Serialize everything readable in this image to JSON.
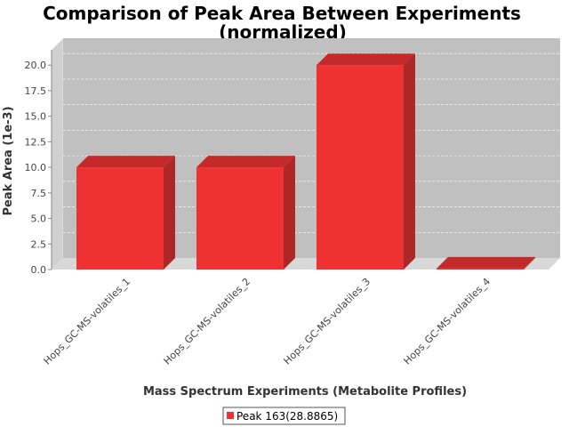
{
  "chart_data": {
    "type": "bar",
    "title_line1": "Comparison of Peak Area Between Experiments",
    "title_line2": "(normalized)",
    "xlabel": "Mass Spectrum Experiments (Metabolite Profiles)",
    "ylabel": "Peak Area (1e-3)",
    "categories": [
      "Hops_GC-MS-volatiles_1",
      "Hops_GC-MS-volatiles_2",
      "Hops_GC-MS-volatiles_3",
      "Hops_GC-MS-volatiles_4"
    ],
    "series": [
      {
        "name": "Peak 163(28.8865)",
        "values": [
          10.0,
          10.0,
          20.0,
          0.1
        ]
      }
    ],
    "ylim": [
      0,
      21.5
    ],
    "yticks": [
      "0.0",
      "2.5",
      "5.0",
      "7.5",
      "10.0",
      "12.5",
      "15.0",
      "17.5",
      "20.0"
    ],
    "grid": true,
    "legend_position": "bottom",
    "colors": {
      "bar_front": "#ee3131",
      "bar_top": "#c52a2a",
      "bar_side": "#ae2727",
      "plot_back": "#c0c0c0",
      "plot_floor": "#d8d8d8",
      "plot_side": "#d0d0d0"
    }
  }
}
